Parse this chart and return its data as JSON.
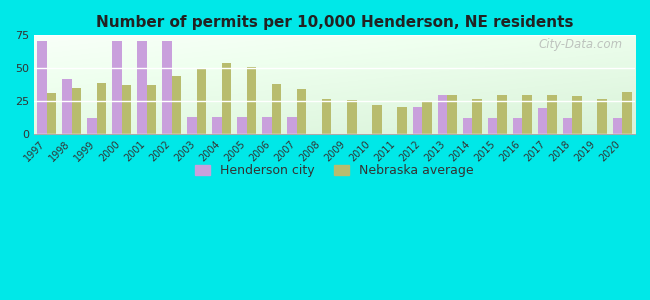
{
  "title": "Number of permits per 10,000 Henderson, NE residents",
  "years": [
    1997,
    1998,
    1999,
    2000,
    2001,
    2002,
    2003,
    2004,
    2005,
    2006,
    2007,
    2008,
    2009,
    2010,
    2011,
    2012,
    2013,
    2014,
    2015,
    2016,
    2017,
    2018,
    2019,
    2020
  ],
  "henderson": [
    71,
    42,
    12,
    71,
    71,
    71,
    13,
    13,
    13,
    13,
    13,
    0,
    0,
    0,
    0,
    21,
    30,
    12,
    12,
    12,
    20,
    12,
    0,
    12
  ],
  "nebraska": [
    31,
    35,
    39,
    37,
    37,
    44,
    50,
    54,
    51,
    38,
    34,
    27,
    26,
    22,
    21,
    25,
    30,
    27,
    30,
    30,
    30,
    29,
    27,
    32
  ],
  "henderson_color": "#c9a0dc",
  "nebraska_color": "#b8bc6e",
  "background_fig": "#00e8e8",
  "title_color": "#222222",
  "ylim": [
    0,
    75
  ],
  "yticks": [
    0,
    25,
    50,
    75
  ],
  "bar_width": 0.38,
  "legend_henderson": "Henderson city",
  "legend_nebraska": "Nebraska average",
  "watermark": "City-Data.com"
}
